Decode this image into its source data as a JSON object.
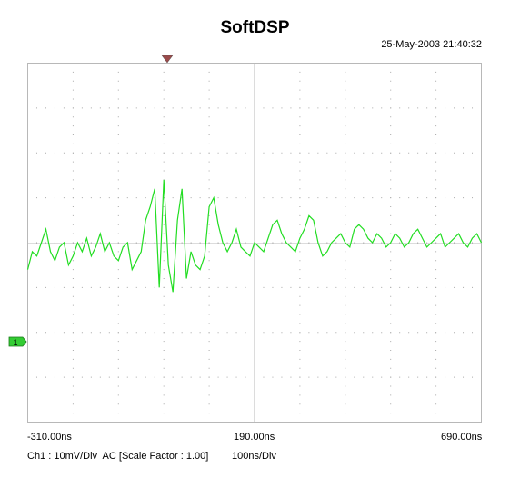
{
  "window": {
    "title": "SoftDSP",
    "timestamp": "25-May-2003 21:40:32"
  },
  "axis": {
    "x_left": "-310.00ns",
    "x_center": "190.00ns",
    "x_right": "690.00ns"
  },
  "channel": {
    "marker_label": "1",
    "color": "#22dd22",
    "marker_color": "#33cc33"
  },
  "footer": {
    "channel_info": "Ch1 : 10mV/Div  AC",
    "scale_factor": "[Scale Factor : 1.00]",
    "timebase": "100ns/Div"
  },
  "chart_data": {
    "type": "line",
    "x_unit": "ns",
    "y_unit": "mV",
    "xlim": [
      -310,
      690
    ],
    "ylim": [
      -40,
      40
    ],
    "x_divisions": 10,
    "y_divisions": 8,
    "grid": true,
    "series": [
      {
        "x": [
          -310,
          -300,
          -290,
          -280,
          -270,
          -260,
          -250,
          -240,
          -230,
          -220,
          -210,
          -200,
          -190,
          -180,
          -170,
          -160,
          -150,
          -140,
          -130,
          -120,
          -110,
          -100,
          -90,
          -80,
          -70,
          -60,
          -50,
          -40,
          -30,
          -20,
          -10,
          0,
          10,
          20,
          30,
          40,
          50,
          60,
          70,
          80,
          90,
          100,
          110,
          120,
          130,
          140,
          150,
          160,
          170,
          180,
          190,
          200,
          210,
          220,
          230,
          240,
          250,
          260,
          270,
          280,
          290,
          300,
          310,
          320,
          330,
          340,
          350,
          360,
          370,
          380,
          390,
          400,
          410,
          420,
          430,
          440,
          450,
          460,
          470,
          480,
          490,
          500,
          510,
          520,
          530,
          540,
          550,
          560,
          570,
          580,
          590,
          600,
          610,
          620,
          630,
          640,
          650,
          660,
          670,
          680,
          690
        ],
        "values": [
          -6,
          -2,
          -3,
          0,
          3,
          -2,
          -4,
          -1,
          0,
          -5,
          -3,
          0,
          -2,
          1,
          -3,
          -1,
          2,
          -2,
          0,
          -3,
          -4,
          -1,
          0,
          -6,
          -4,
          -2,
          5,
          8,
          12,
          -10,
          14,
          -5,
          -11,
          5,
          12,
          -8,
          -2,
          -5,
          -6,
          -3,
          8,
          10,
          4,
          0,
          -2,
          0,
          3,
          -1,
          -2,
          -3,
          0,
          -1,
          -2,
          1,
          4,
          5,
          2,
          0,
          -1,
          -2,
          1,
          3,
          6,
          5,
          0,
          -3,
          -2,
          0,
          1,
          2,
          0,
          -1,
          3,
          4,
          3,
          1,
          0,
          2,
          1,
          -1,
          0,
          2,
          1,
          -1,
          0,
          2,
          3,
          1,
          -1,
          0,
          1,
          2,
          -1,
          0,
          1,
          2,
          0,
          -1,
          1,
          2,
          0
        ]
      }
    ]
  }
}
